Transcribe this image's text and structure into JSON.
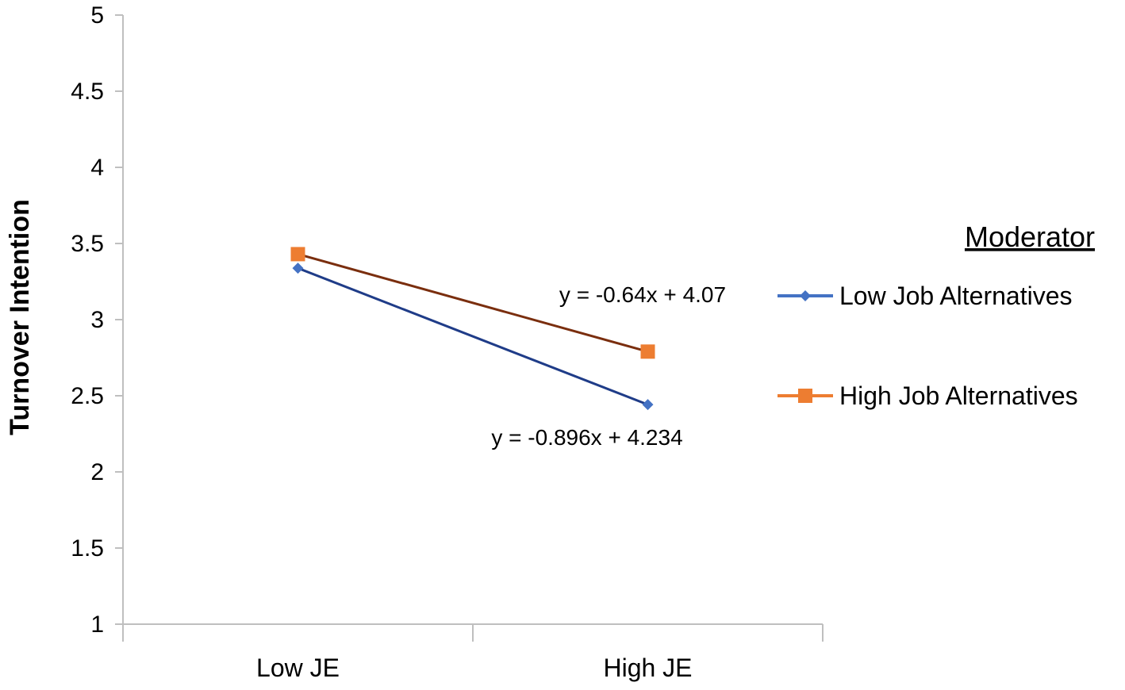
{
  "chart_data": {
    "type": "line",
    "ylabel": "Turnover Intention",
    "categories": [
      "Low JE",
      "High JE"
    ],
    "ylim": [
      1,
      5
    ],
    "yticks": [
      "1",
      "1.5",
      "2",
      "2.5",
      "3",
      "3.5",
      "4",
      "4.5",
      "5"
    ],
    "grid": false,
    "legend": {
      "title": "Moderator",
      "position": "right"
    },
    "series": [
      {
        "name": "Low Job Alternatives",
        "values": [
          3.338,
          2.442
        ],
        "color": "#4472c4",
        "line_color": "#1f3c88",
        "marker": "diamond",
        "equation": "y = -0.896x + 4.234"
      },
      {
        "name": "High Job Alternatives",
        "values": [
          3.43,
          2.79
        ],
        "color": "#ed7d31",
        "line_color": "#7a2e0e",
        "marker": "square",
        "equation": "y = -0.64x + 4.07"
      }
    ]
  }
}
